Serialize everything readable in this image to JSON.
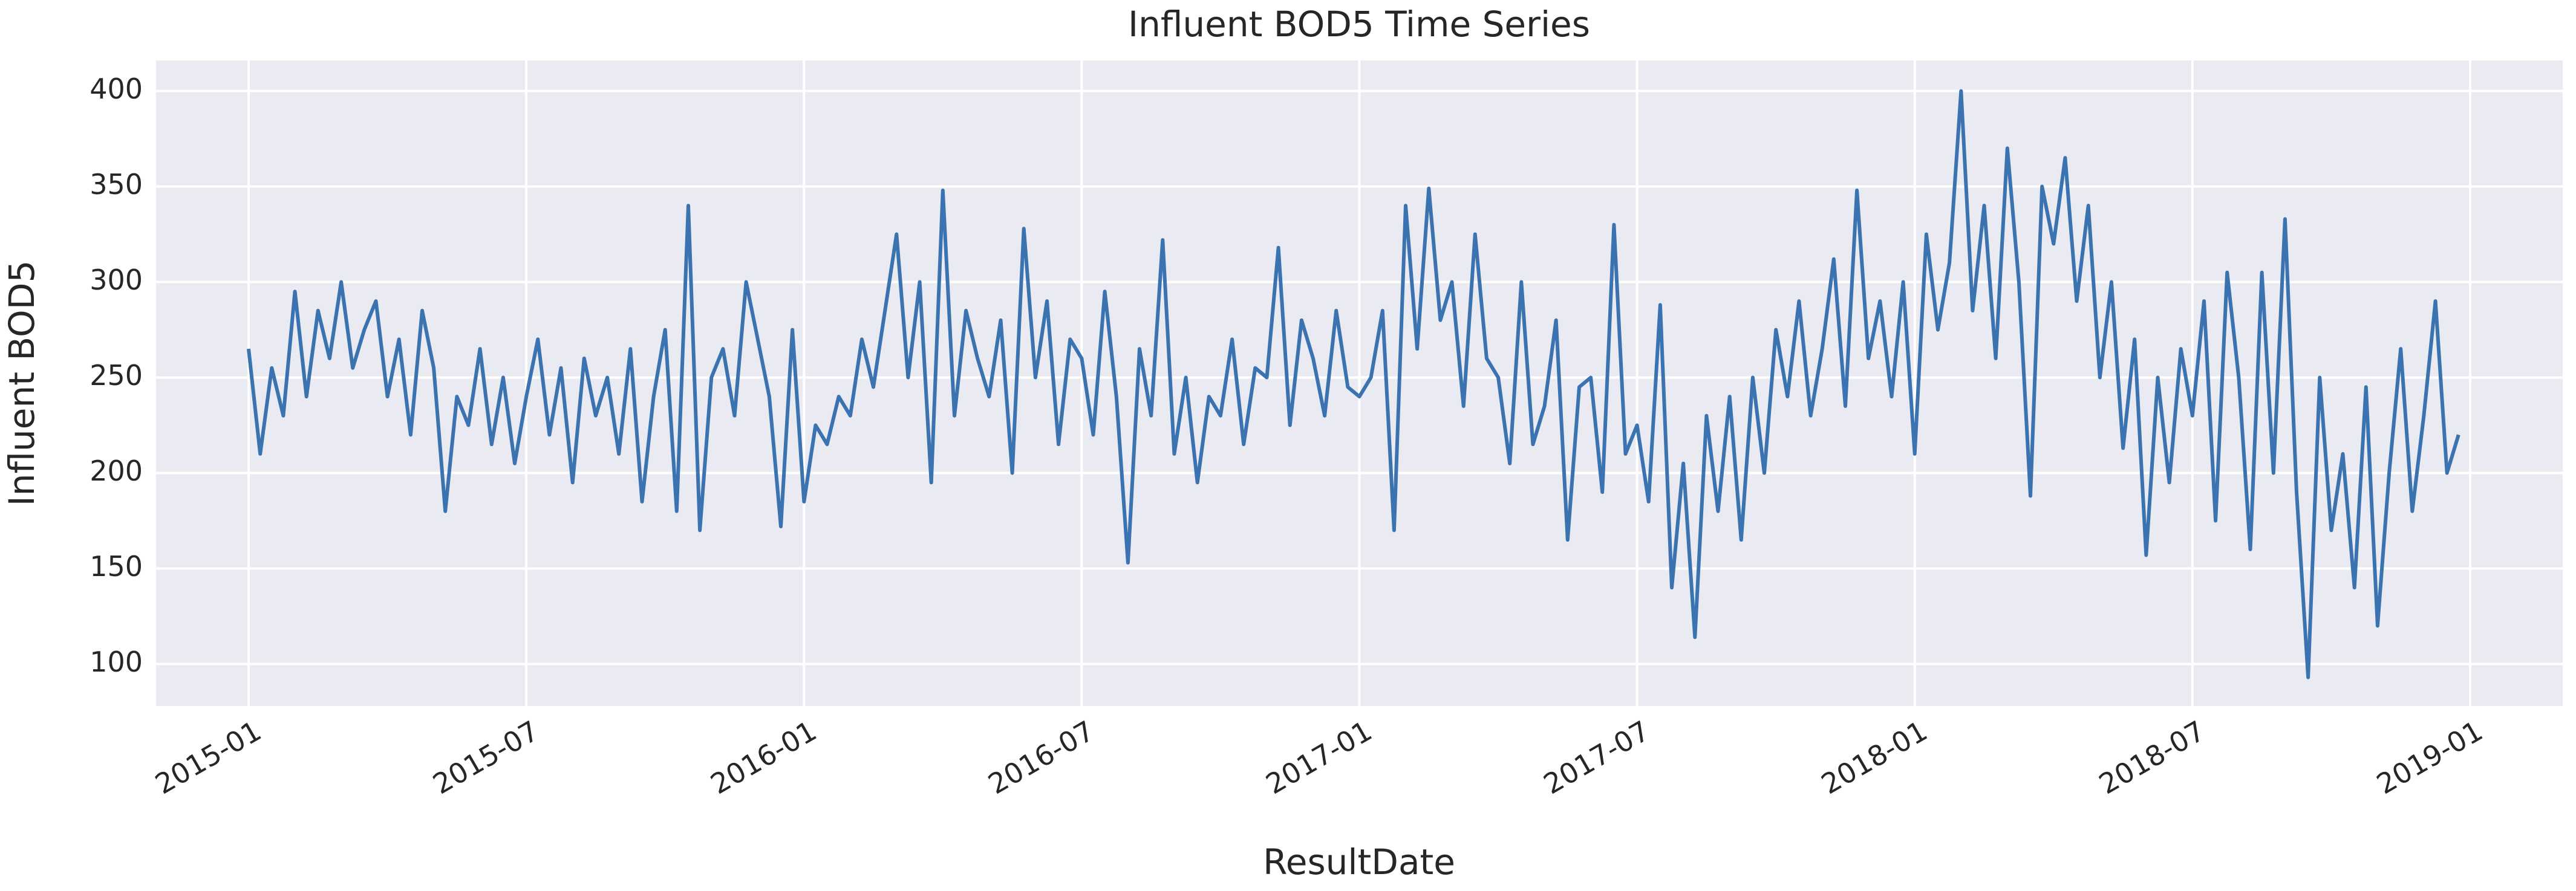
{
  "chart_data": {
    "type": "line",
    "title": "Influent BOD5 Time Series",
    "xlabel": "ResultDate",
    "ylabel": "Influent BOD5",
    "x": [
      "2015-01",
      "2015-01",
      "2015-01",
      "2015-01",
      "2015-02",
      "2015-02",
      "2015-02",
      "2015-02",
      "2015-03",
      "2015-03",
      "2015-03",
      "2015-03",
      "2015-04",
      "2015-04",
      "2015-04",
      "2015-04",
      "2015-05",
      "2015-05",
      "2015-05",
      "2015-05",
      "2015-06",
      "2015-06",
      "2015-06",
      "2015-06",
      "2015-07",
      "2015-07",
      "2015-07",
      "2015-07",
      "2015-08",
      "2015-08",
      "2015-08",
      "2015-08",
      "2015-09",
      "2015-09",
      "2015-09",
      "2015-09",
      "2015-10",
      "2015-10",
      "2015-10",
      "2015-10",
      "2015-11",
      "2015-11",
      "2015-11",
      "2015-11",
      "2015-12",
      "2015-12",
      "2015-12",
      "2015-12",
      "2016-01",
      "2016-01",
      "2016-01",
      "2016-01",
      "2016-02",
      "2016-02",
      "2016-02",
      "2016-02",
      "2016-03",
      "2016-03",
      "2016-03",
      "2016-03",
      "2016-04",
      "2016-04",
      "2016-04",
      "2016-04",
      "2016-05",
      "2016-05",
      "2016-05",
      "2016-05",
      "2016-06",
      "2016-06",
      "2016-06",
      "2016-06",
      "2016-07",
      "2016-07",
      "2016-07",
      "2016-07",
      "2016-08",
      "2016-08",
      "2016-08",
      "2016-08",
      "2016-09",
      "2016-09",
      "2016-09",
      "2016-09",
      "2016-10",
      "2016-10",
      "2016-10",
      "2016-10",
      "2016-11",
      "2016-11",
      "2016-11",
      "2016-11",
      "2016-12",
      "2016-12",
      "2016-12",
      "2016-12",
      "2017-01",
      "2017-01",
      "2017-01",
      "2017-01",
      "2017-02",
      "2017-02",
      "2017-02",
      "2017-02",
      "2017-03",
      "2017-03",
      "2017-03",
      "2017-03",
      "2017-04",
      "2017-04",
      "2017-04",
      "2017-04",
      "2017-05",
      "2017-05",
      "2017-05",
      "2017-05",
      "2017-06",
      "2017-06",
      "2017-06",
      "2017-06",
      "2017-07",
      "2017-07",
      "2017-07",
      "2017-07",
      "2017-08",
      "2017-08",
      "2017-08",
      "2017-08",
      "2017-09",
      "2017-09",
      "2017-09",
      "2017-09",
      "2017-10",
      "2017-10",
      "2017-10",
      "2017-10",
      "2017-11",
      "2017-11",
      "2017-11",
      "2017-11",
      "2017-12",
      "2017-12",
      "2017-12",
      "2017-12",
      "2018-01",
      "2018-01",
      "2018-01",
      "2018-01",
      "2018-02",
      "2018-02",
      "2018-02",
      "2018-02",
      "2018-03",
      "2018-03",
      "2018-03",
      "2018-03",
      "2018-04",
      "2018-04",
      "2018-04",
      "2018-04",
      "2018-05",
      "2018-05",
      "2018-05",
      "2018-05",
      "2018-06",
      "2018-06",
      "2018-06",
      "2018-06",
      "2018-07",
      "2018-07",
      "2018-07",
      "2018-07",
      "2018-08",
      "2018-08",
      "2018-08",
      "2018-08",
      "2018-09",
      "2018-09",
      "2018-09",
      "2018-09",
      "2018-10",
      "2018-10",
      "2018-10",
      "2018-10",
      "2018-11",
      "2018-11",
      "2018-11",
      "2018-11",
      "2018-12",
      "2018-12",
      "2018-12",
      "2018-12"
    ],
    "values": [
      265,
      210,
      255,
      230,
      295,
      240,
      285,
      260,
      300,
      255,
      275,
      290,
      240,
      270,
      220,
      285,
      255,
      180,
      240,
      225,
      265,
      215,
      250,
      205,
      240,
      270,
      220,
      255,
      195,
      260,
      230,
      250,
      210,
      265,
      185,
      240,
      275,
      180,
      340,
      170,
      250,
      265,
      230,
      300,
      270,
      240,
      172,
      275,
      185,
      225,
      215,
      240,
      230,
      270,
      245,
      285,
      325,
      250,
      300,
      195,
      348,
      230,
      285,
      260,
      240,
      280,
      200,
      328,
      250,
      290,
      215,
      270,
      260,
      220,
      295,
      240,
      153,
      265,
      230,
      322,
      210,
      250,
      195,
      240,
      230,
      270,
      215,
      255,
      250,
      318,
      225,
      280,
      260,
      230,
      285,
      245,
      240,
      250,
      285,
      170,
      340,
      265,
      349,
      280,
      300,
      235,
      325,
      260,
      250,
      205,
      300,
      215,
      235,
      280,
      165,
      245,
      250,
      190,
      330,
      210,
      225,
      185,
      288,
      140,
      205,
      114,
      230,
      180,
      240,
      165,
      250,
      200,
      275,
      240,
      290,
      230,
      265,
      312,
      235,
      348,
      260,
      290,
      240,
      300,
      210,
      325,
      275,
      310,
      400,
      285,
      340,
      260,
      370,
      300,
      188,
      350,
      320,
      365,
      290,
      340,
      250,
      300,
      213,
      270,
      157,
      250,
      195,
      265,
      230,
      290,
      175,
      305,
      250,
      160,
      305,
      200,
      333,
      190,
      93,
      250,
      170,
      210,
      140,
      245,
      120,
      200,
      265,
      180,
      230,
      290,
      200,
      220
    ],
    "color": "#3a73b0",
    "xlim": [
      "2014-11",
      "2019-03"
    ],
    "xticks": [
      "2015-01",
      "2015-07",
      "2016-01",
      "2016-07",
      "2017-01",
      "2017-07",
      "2018-01",
      "2018-07",
      "2019-01"
    ],
    "ylim": [
      78,
      416
    ],
    "yticks": [
      100,
      150,
      200,
      250,
      300,
      350,
      400
    ],
    "grid": true
  }
}
